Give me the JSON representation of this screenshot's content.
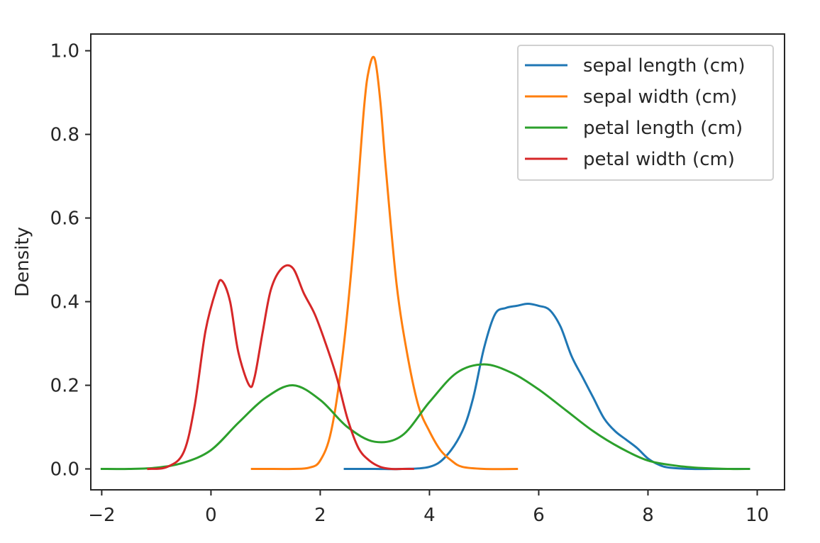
{
  "chart_data": {
    "type": "line",
    "title": "",
    "xlabel": "",
    "ylabel": "Density",
    "xlim": [
      -2.2,
      10.5
    ],
    "ylim": [
      -0.05,
      1.04
    ],
    "xticks": [
      -2,
      0,
      2,
      4,
      6,
      8,
      10
    ],
    "xtick_labels": [
      "−2",
      "0",
      "2",
      "4",
      "6",
      "8",
      "10"
    ],
    "yticks": [
      0.0,
      0.2,
      0.4,
      0.6,
      0.8,
      1.0
    ],
    "ytick_labels": [
      "0.0",
      "0.2",
      "0.4",
      "0.6",
      "0.8",
      "1.0"
    ],
    "grid": false,
    "legend_position": "top-right",
    "series": [
      {
        "name": "sepal length (cm)",
        "color": "#1f77b4",
        "x": [
          2.45,
          3.0,
          3.5,
          4.0,
          4.3,
          4.6,
          4.8,
          5.0,
          5.2,
          5.4,
          5.6,
          5.8,
          6.0,
          6.2,
          6.4,
          6.6,
          6.8,
          7.0,
          7.2,
          7.4,
          7.6,
          7.8,
          8.0,
          8.2,
          8.4,
          8.8,
          9.2,
          9.6,
          9.85
        ],
        "y": [
          0.0,
          0.0,
          0.0,
          0.005,
          0.03,
          0.09,
          0.17,
          0.29,
          0.37,
          0.385,
          0.39,
          0.395,
          0.39,
          0.38,
          0.34,
          0.27,
          0.22,
          0.17,
          0.12,
          0.09,
          0.07,
          0.05,
          0.025,
          0.01,
          0.003,
          0.0,
          0.0,
          0.0,
          0.0
        ]
      },
      {
        "name": "sepal width (cm)",
        "color": "#ff7f0e",
        "x": [
          0.75,
          1.0,
          1.5,
          1.8,
          2.0,
          2.2,
          2.4,
          2.6,
          2.8,
          2.9,
          3.0,
          3.1,
          3.2,
          3.4,
          3.6,
          3.8,
          4.0,
          4.2,
          4.4,
          4.6,
          5.0,
          5.6
        ],
        "y": [
          0.0,
          0.0,
          0.0,
          0.003,
          0.02,
          0.09,
          0.26,
          0.52,
          0.86,
          0.96,
          0.98,
          0.88,
          0.72,
          0.44,
          0.27,
          0.15,
          0.09,
          0.045,
          0.02,
          0.005,
          0.0,
          0.0
        ]
      },
      {
        "name": "petal length (cm)",
        "color": "#2ca02c",
        "x": [
          -2.0,
          -1.5,
          -1.0,
          -0.5,
          0.0,
          0.5,
          1.0,
          1.5,
          2.0,
          2.5,
          3.0,
          3.5,
          4.0,
          4.5,
          5.0,
          5.5,
          6.0,
          6.5,
          7.0,
          7.5,
          8.0,
          8.5,
          9.0,
          9.5,
          9.85
        ],
        "y": [
          0.0,
          0.0,
          0.003,
          0.015,
          0.045,
          0.11,
          0.17,
          0.2,
          0.165,
          0.1,
          0.065,
          0.08,
          0.16,
          0.23,
          0.25,
          0.23,
          0.19,
          0.14,
          0.09,
          0.05,
          0.02,
          0.008,
          0.002,
          0.0,
          0.0
        ]
      },
      {
        "name": "petal width (cm)",
        "color": "#d62728",
        "x": [
          -1.15,
          -0.8,
          -0.5,
          -0.3,
          -0.1,
          0.1,
          0.2,
          0.35,
          0.5,
          0.7,
          0.8,
          0.95,
          1.1,
          1.3,
          1.5,
          1.7,
          1.9,
          2.1,
          2.3,
          2.5,
          2.7,
          2.9,
          3.1,
          3.3,
          3.5,
          3.7
        ],
        "y": [
          0.0,
          0.005,
          0.04,
          0.15,
          0.33,
          0.43,
          0.45,
          0.4,
          0.28,
          0.2,
          0.22,
          0.33,
          0.43,
          0.48,
          0.48,
          0.42,
          0.37,
          0.3,
          0.22,
          0.12,
          0.05,
          0.02,
          0.005,
          0.0,
          0.0,
          0.0
        ]
      }
    ]
  }
}
